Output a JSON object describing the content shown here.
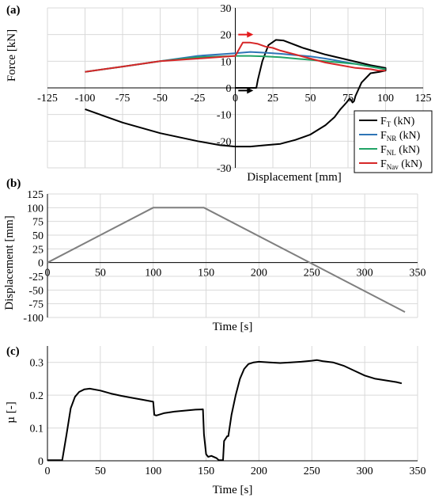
{
  "figure": {
    "panel_a_label": "(a)",
    "panel_b_label": "(b)",
    "panel_c_label": "(c)"
  },
  "chart_data": [
    {
      "type": "line",
      "panel": "(a)",
      "xlabel": "Displacement [mm]",
      "ylabel": "Force [kN]",
      "xlim": [
        -125,
        125
      ],
      "ylim": [
        -30,
        30
      ],
      "xticks": [
        -125,
        -100,
        -75,
        -50,
        -25,
        0,
        25,
        50,
        75,
        100,
        125
      ],
      "yticks": [
        -30,
        -20,
        -10,
        0,
        10,
        20,
        30
      ],
      "grid": true,
      "legend_position": "right",
      "legend": [
        {
          "main": "F",
          "sub": "T",
          "tail": " (kN)",
          "color": "#000000"
        },
        {
          "main": "F",
          "sub": "NR",
          "tail": " (kN)",
          "color": "#2e75b6"
        },
        {
          "main": "F",
          "sub": "NL",
          "tail": " (kN)",
          "color": "#21a366"
        },
        {
          "main": "F",
          "sub": "Nav",
          "tail": " (kN)",
          "color": "#d62728"
        }
      ],
      "series": [
        {
          "color": "#000000",
          "x": [
            0,
            14,
            15,
            18,
            22,
            27,
            32,
            45,
            60,
            75,
            90,
            100,
            100,
            96,
            90,
            84,
            80,
            79,
            78,
            77,
            76,
            74,
            70,
            66,
            60,
            50,
            40,
            30,
            20,
            10,
            0,
            -10,
            -25,
            -50,
            -75,
            -90,
            -100
          ],
          "y": [
            0,
            0,
            3,
            10,
            16,
            18,
            17.8,
            15,
            12.5,
            10.5,
            8.5,
            7.5,
            6.5,
            6,
            5.5,
            2,
            -3,
            -5,
            -5.5,
            -4.5,
            -4,
            -5.5,
            -8,
            -11,
            -14,
            -17.5,
            -19.5,
            -21,
            -21.5,
            -22,
            -22,
            -21.5,
            -20,
            -17,
            -13,
            -10,
            -8
          ]
        },
        {
          "color": "#2e75b6",
          "x": [
            -100,
            -75,
            -50,
            -25,
            0,
            10,
            20,
            30,
            40,
            50,
            60,
            70,
            80,
            90,
            100
          ],
          "y": [
            6,
            8,
            10,
            12,
            13,
            13.5,
            13.2,
            12.8,
            12.3,
            11.8,
            11,
            10,
            9,
            8,
            7
          ]
        },
        {
          "color": "#21a366",
          "x": [
            -100,
            -75,
            -50,
            -25,
            0,
            10,
            20,
            30,
            40,
            50,
            60,
            70,
            80,
            90,
            100
          ],
          "y": [
            6,
            8,
            10,
            11.5,
            12,
            12,
            11.8,
            11.5,
            11,
            10.5,
            10,
            9.5,
            9,
            8,
            7
          ]
        },
        {
          "color": "#d62728",
          "x": [
            -100,
            -75,
            -50,
            -25,
            0,
            5,
            10,
            15,
            20,
            25,
            30,
            40,
            50,
            60,
            70,
            80,
            90,
            95,
            100
          ],
          "y": [
            6,
            8,
            10,
            11,
            12,
            17,
            17,
            16.5,
            15.5,
            15,
            14,
            12.5,
            11,
            9.5,
            8.5,
            7.5,
            7,
            6.5,
            6.5
          ]
        }
      ],
      "annotations": [
        {
          "kind": "arrow",
          "color": "#e31a1c",
          "x": [
            2,
            12
          ],
          "y": [
            20,
            20
          ]
        },
        {
          "kind": "arrow",
          "color": "#000000",
          "x": [
            2,
            12
          ],
          "y": [
            -1,
            -1
          ]
        }
      ]
    },
    {
      "type": "line",
      "panel": "(b)",
      "xlabel": "Time [s]",
      "ylabel": "Displacement [mm]",
      "xlim": [
        0,
        350
      ],
      "ylim": [
        -100,
        125
      ],
      "xticks": [
        0,
        50,
        100,
        150,
        200,
        250,
        300,
        350
      ],
      "yticks": [
        -100,
        -75,
        -50,
        -25,
        0,
        25,
        50,
        75,
        100,
        125
      ],
      "grid": true,
      "series": [
        {
          "color": "#7f7f7f",
          "x": [
            0,
            100,
            148,
            338
          ],
          "y": [
            0,
            100,
            100,
            -90
          ]
        }
      ]
    },
    {
      "type": "line",
      "panel": "(c)",
      "xlabel": "Time [s]",
      "ylabel": "µ [-]",
      "xlim": [
        0,
        350
      ],
      "ylim": [
        0,
        0.35
      ],
      "xticks": [
        0,
        50,
        100,
        150,
        200,
        250,
        300,
        350
      ],
      "yticks": [
        0,
        0.1,
        0.2,
        0.3
      ],
      "grid": true,
      "series": [
        {
          "color": "#000000",
          "x": [
            0,
            14,
            18,
            22,
            26,
            30,
            35,
            40,
            50,
            60,
            70,
            80,
            90,
            100,
            101,
            103,
            110,
            120,
            130,
            140,
            147,
            148,
            150,
            152,
            155,
            160,
            162,
            166,
            167,
            170,
            171,
            174,
            178,
            182,
            186,
            190,
            195,
            200,
            210,
            220,
            230,
            240,
            250,
            255,
            260,
            270,
            280,
            290,
            300,
            310,
            320,
            330,
            335
          ],
          "y": [
            0.002,
            0.002,
            0.08,
            0.16,
            0.195,
            0.21,
            0.218,
            0.22,
            0.214,
            0.205,
            0.198,
            0.192,
            0.186,
            0.18,
            0.14,
            0.138,
            0.145,
            0.15,
            0.153,
            0.156,
            0.157,
            0.08,
            0.02,
            0.012,
            0.015,
            0.008,
            0.002,
            0.002,
            0.06,
            0.075,
            0.075,
            0.14,
            0.2,
            0.25,
            0.28,
            0.295,
            0.3,
            0.302,
            0.3,
            0.298,
            0.3,
            0.302,
            0.305,
            0.307,
            0.304,
            0.3,
            0.29,
            0.275,
            0.26,
            0.25,
            0.245,
            0.24,
            0.236
          ]
        }
      ]
    }
  ]
}
